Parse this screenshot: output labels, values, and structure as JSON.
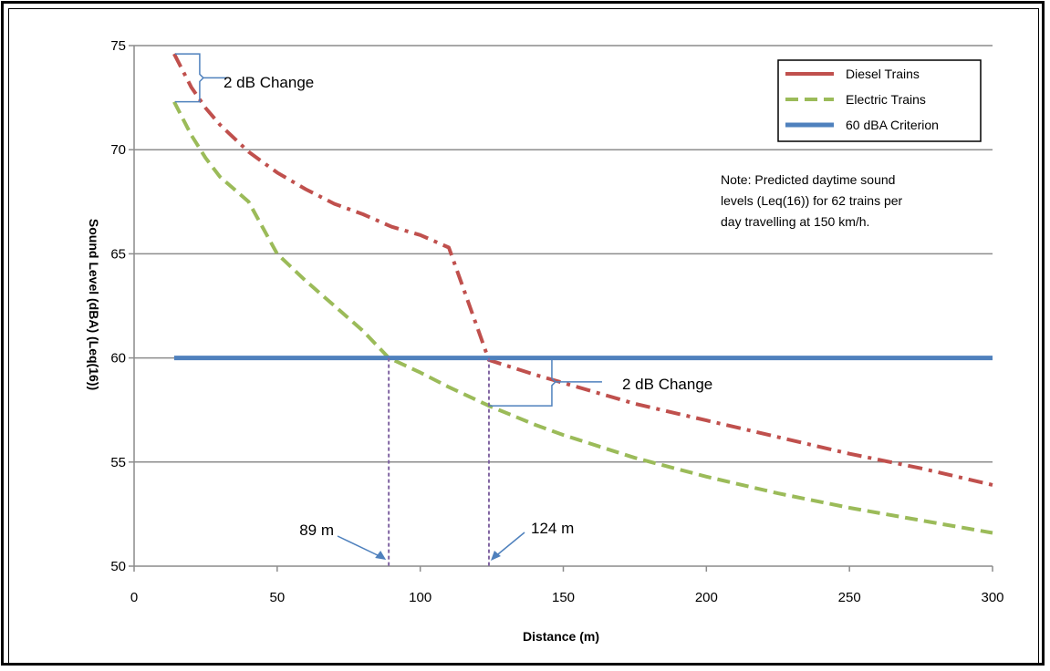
{
  "chart_data": {
    "type": "line",
    "xlabel": "Distance (m)",
    "ylabel": "Sound Level (dBA) (Leq(16))",
    "xlim": [
      0,
      300
    ],
    "ylim": [
      50,
      75
    ],
    "x_ticks": [
      0,
      50,
      100,
      150,
      200,
      250,
      300
    ],
    "y_ticks": [
      50,
      55,
      60,
      65,
      70,
      75
    ],
    "grid": "horizontal",
    "legend_position": "top-right",
    "series": [
      {
        "name": "Diesel Trains",
        "color": "#C0504D",
        "style": "dash-dot",
        "x": [
          14,
          20,
          25,
          30,
          40,
          50,
          60,
          70,
          80,
          90,
          100,
          110,
          124,
          140,
          150,
          175,
          200,
          225,
          250,
          275,
          300
        ],
        "y": [
          74.6,
          73.0,
          72.0,
          71.2,
          69.9,
          68.9,
          68.1,
          67.4,
          66.9,
          66.3,
          65.9,
          65.3,
          59.9,
          59.2,
          58.8,
          57.8,
          57.0,
          56.2,
          55.4,
          54.7,
          53.9
        ]
      },
      {
        "name": "Electric Trains",
        "color": "#9BBB59",
        "style": "dashed",
        "x": [
          14,
          20,
          25,
          30,
          40,
          50,
          60,
          70,
          80,
          89,
          100,
          110,
          124,
          140,
          150,
          175,
          200,
          225,
          250,
          275,
          300
        ],
        "y": [
          72.3,
          70.7,
          69.6,
          68.7,
          67.5,
          65.0,
          63.7,
          62.5,
          61.3,
          60.0,
          59.3,
          58.6,
          57.7,
          56.8,
          56.3,
          55.2,
          54.3,
          53.5,
          52.8,
          52.2,
          51.6
        ]
      },
      {
        "name": "60 dBA Criterion",
        "color": "#4F81BD",
        "style": "solid",
        "x": [
          14,
          300
        ],
        "y": [
          60,
          60
        ]
      }
    ],
    "annotations": [
      {
        "text": "2 dB Change",
        "x": 30,
        "y": 73.4
      },
      {
        "text": "2 dB Change",
        "x": 172,
        "y": 58.9
      },
      {
        "text": "89 m",
        "x": 89,
        "y": 51.9
      },
      {
        "text": "124 m",
        "x": 124,
        "y": 51.9
      }
    ],
    "note_lines": [
      "Note: Predicted daytime sound",
      "levels (Leq(16)) for 62 trains per",
      "day travelling at 150 km/h."
    ],
    "markers_x": [
      89,
      124
    ]
  }
}
